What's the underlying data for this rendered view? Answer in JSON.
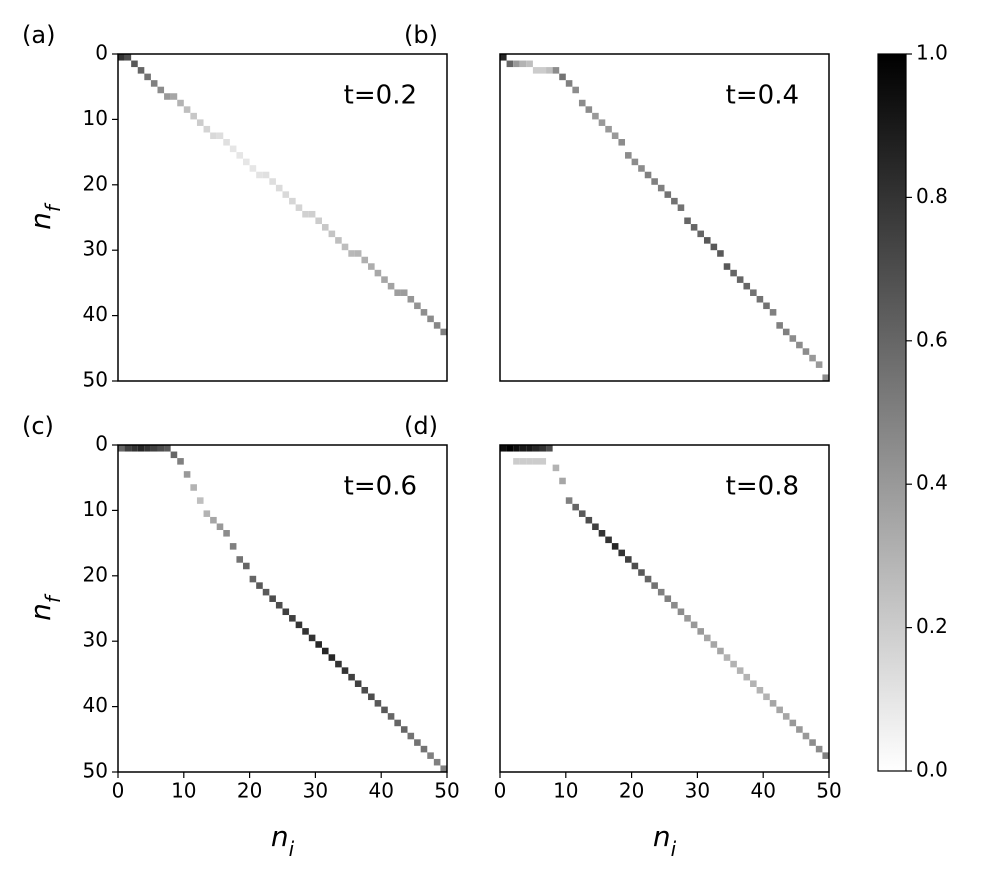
{
  "chart_data": [
    {
      "type": "heatmap",
      "label": "(a)",
      "annotation": "t=0.2",
      "xlim": [
        0,
        50
      ],
      "ylim": [
        0,
        50
      ],
      "invert_y": true,
      "yticks": [
        0,
        10,
        20,
        30,
        40,
        50
      ],
      "ylabel": "nf",
      "cells": [
        [
          0,
          0,
          0.8
        ],
        [
          1,
          0,
          0.7
        ],
        [
          2,
          1,
          0.65
        ],
        [
          3,
          2,
          0.6
        ],
        [
          4,
          3,
          0.55
        ],
        [
          5,
          4,
          0.5
        ],
        [
          6,
          5,
          0.45
        ],
        [
          7,
          6,
          0.4
        ],
        [
          8,
          6,
          0.35
        ],
        [
          9,
          7,
          0.3
        ],
        [
          10,
          8,
          0.25
        ],
        [
          11,
          9,
          0.22
        ],
        [
          12,
          10,
          0.2
        ],
        [
          13,
          11,
          0.17
        ],
        [
          14,
          12,
          0.15
        ],
        [
          15,
          12,
          0.13
        ],
        [
          16,
          13,
          0.12
        ],
        [
          17,
          14,
          0.1
        ],
        [
          18,
          15,
          0.1
        ],
        [
          19,
          16,
          0.1
        ],
        [
          20,
          17,
          0.1
        ],
        [
          21,
          18,
          0.11
        ],
        [
          22,
          18,
          0.12
        ],
        [
          23,
          19,
          0.13
        ],
        [
          24,
          20,
          0.14
        ],
        [
          25,
          21,
          0.15
        ],
        [
          26,
          22,
          0.16
        ],
        [
          27,
          23,
          0.17
        ],
        [
          28,
          24,
          0.18
        ],
        [
          29,
          24,
          0.19
        ],
        [
          30,
          25,
          0.2
        ],
        [
          31,
          26,
          0.22
        ],
        [
          32,
          27,
          0.23
        ],
        [
          33,
          28,
          0.25
        ],
        [
          34,
          29,
          0.26
        ],
        [
          35,
          30,
          0.28
        ],
        [
          36,
          30,
          0.29
        ],
        [
          37,
          31,
          0.31
        ],
        [
          38,
          32,
          0.32
        ],
        [
          39,
          33,
          0.34
        ],
        [
          40,
          34,
          0.35
        ],
        [
          41,
          35,
          0.36
        ],
        [
          42,
          36,
          0.38
        ],
        [
          43,
          36,
          0.39
        ],
        [
          44,
          37,
          0.41
        ],
        [
          45,
          38,
          0.42
        ],
        [
          46,
          39,
          0.44
        ],
        [
          47,
          40,
          0.45
        ],
        [
          48,
          41,
          0.47
        ],
        [
          49,
          42,
          0.5
        ]
      ]
    },
    {
      "type": "heatmap",
      "label": "(b)",
      "annotation": "t=0.4",
      "xlim": [
        0,
        50
      ],
      "ylim": [
        0,
        50
      ],
      "invert_y": true,
      "cells": [
        [
          0,
          0,
          0.85
        ],
        [
          1,
          1,
          0.6
        ],
        [
          2,
          1,
          0.4
        ],
        [
          3,
          1,
          0.3
        ],
        [
          4,
          1,
          0.25
        ],
        [
          5,
          2,
          0.2
        ],
        [
          6,
          2,
          0.2
        ],
        [
          7,
          2,
          0.25
        ],
        [
          8,
          2,
          0.45
        ],
        [
          9,
          3,
          0.55
        ],
        [
          10,
          4,
          0.5
        ],
        [
          11,
          5,
          0.45
        ],
        [
          12,
          7,
          0.45
        ],
        [
          13,
          8,
          0.45
        ],
        [
          14,
          9,
          0.4
        ],
        [
          15,
          10,
          0.4
        ],
        [
          16,
          11,
          0.4
        ],
        [
          17,
          12,
          0.4
        ],
        [
          18,
          13,
          0.45
        ],
        [
          19,
          15,
          0.45
        ],
        [
          20,
          16,
          0.45
        ],
        [
          21,
          17,
          0.45
        ],
        [
          22,
          18,
          0.5
        ],
        [
          23,
          19,
          0.5
        ],
        [
          24,
          20,
          0.5
        ],
        [
          25,
          21,
          0.55
        ],
        [
          26,
          22,
          0.55
        ],
        [
          27,
          23,
          0.55
        ],
        [
          28,
          25,
          0.6
        ],
        [
          29,
          26,
          0.6
        ],
        [
          30,
          27,
          0.6
        ],
        [
          31,
          28,
          0.65
        ],
        [
          32,
          29,
          0.65
        ],
        [
          33,
          30,
          0.65
        ],
        [
          34,
          32,
          0.65
        ],
        [
          35,
          33,
          0.6
        ],
        [
          36,
          34,
          0.6
        ],
        [
          37,
          35,
          0.6
        ],
        [
          38,
          36,
          0.55
        ],
        [
          39,
          37,
          0.55
        ],
        [
          40,
          38,
          0.55
        ],
        [
          41,
          39,
          0.5
        ],
        [
          42,
          41,
          0.5
        ],
        [
          43,
          42,
          0.5
        ],
        [
          44,
          43,
          0.45
        ],
        [
          45,
          44,
          0.45
        ],
        [
          46,
          45,
          0.45
        ],
        [
          47,
          46,
          0.4
        ],
        [
          48,
          47,
          0.4
        ],
        [
          49,
          49,
          0.45
        ]
      ]
    },
    {
      "type": "heatmap",
      "label": "(c)",
      "annotation": "t=0.6",
      "xlim": [
        0,
        50
      ],
      "ylim": [
        0,
        50
      ],
      "invert_y": true,
      "xticks": [
        0,
        10,
        20,
        30,
        40,
        50
      ],
      "yticks": [
        0,
        10,
        20,
        30,
        40,
        50
      ],
      "xlabel": "ni",
      "ylabel": "nf",
      "cells": [
        [
          0,
          0,
          0.6
        ],
        [
          1,
          0,
          0.75
        ],
        [
          2,
          0,
          0.8
        ],
        [
          3,
          0,
          0.85
        ],
        [
          4,
          0,
          0.8
        ],
        [
          5,
          0,
          0.75
        ],
        [
          6,
          0,
          0.7
        ],
        [
          7,
          0,
          0.65
        ],
        [
          8,
          1,
          0.6
        ],
        [
          9,
          2,
          0.5
        ],
        [
          10,
          4,
          0.4
        ],
        [
          11,
          6,
          0.3
        ],
        [
          12,
          8,
          0.25
        ],
        [
          13,
          10,
          0.3
        ],
        [
          14,
          11,
          0.35
        ],
        [
          15,
          12,
          0.4
        ],
        [
          16,
          13,
          0.45
        ],
        [
          17,
          15,
          0.5
        ],
        [
          18,
          17,
          0.55
        ],
        [
          19,
          18,
          0.6
        ],
        [
          20,
          20,
          0.6
        ],
        [
          21,
          21,
          0.65
        ],
        [
          22,
          22,
          0.65
        ],
        [
          23,
          23,
          0.7
        ],
        [
          24,
          24,
          0.7
        ],
        [
          25,
          25,
          0.75
        ],
        [
          26,
          26,
          0.75
        ],
        [
          27,
          27,
          0.8
        ],
        [
          28,
          28,
          0.8
        ],
        [
          29,
          29,
          0.8
        ],
        [
          30,
          30,
          0.85
        ],
        [
          31,
          31,
          0.85
        ],
        [
          32,
          32,
          0.85
        ],
        [
          33,
          33,
          0.8
        ],
        [
          34,
          34,
          0.8
        ],
        [
          35,
          35,
          0.75
        ],
        [
          36,
          36,
          0.75
        ],
        [
          37,
          37,
          0.7
        ],
        [
          38,
          38,
          0.7
        ],
        [
          39,
          39,
          0.65
        ],
        [
          40,
          40,
          0.65
        ],
        [
          41,
          41,
          0.6
        ],
        [
          42,
          42,
          0.6
        ],
        [
          43,
          43,
          0.6
        ],
        [
          44,
          44,
          0.55
        ],
        [
          45,
          45,
          0.55
        ],
        [
          46,
          46,
          0.55
        ],
        [
          47,
          47,
          0.5
        ],
        [
          48,
          48,
          0.5
        ],
        [
          49,
          49,
          0.5
        ]
      ]
    },
    {
      "type": "heatmap",
      "label": "(d)",
      "annotation": "t=0.8",
      "xlim": [
        0,
        50
      ],
      "ylim": [
        0,
        50
      ],
      "invert_y": true,
      "xticks": [
        0,
        10,
        20,
        30,
        40,
        50
      ],
      "xlabel": "ni",
      "cells": [
        [
          0,
          0,
          0.95
        ],
        [
          1,
          0,
          1.0
        ],
        [
          2,
          0,
          0.95
        ],
        [
          3,
          0,
          0.9
        ],
        [
          4,
          0,
          0.9
        ],
        [
          5,
          0,
          0.85
        ],
        [
          6,
          0,
          0.8
        ],
        [
          7,
          0,
          0.7
        ],
        [
          2,
          2,
          0.2
        ],
        [
          3,
          2,
          0.2
        ],
        [
          4,
          2,
          0.2
        ],
        [
          5,
          2,
          0.2
        ],
        [
          6,
          2,
          0.2
        ],
        [
          8,
          3,
          0.3
        ],
        [
          9,
          5,
          0.35
        ],
        [
          10,
          8,
          0.5
        ],
        [
          11,
          9,
          0.6
        ],
        [
          12,
          10,
          0.65
        ],
        [
          13,
          11,
          0.7
        ],
        [
          14,
          12,
          0.75
        ],
        [
          15,
          13,
          0.8
        ],
        [
          16,
          14,
          0.8
        ],
        [
          17,
          15,
          0.85
        ],
        [
          18,
          16,
          0.8
        ],
        [
          19,
          17,
          0.75
        ],
        [
          20,
          18,
          0.7
        ],
        [
          21,
          19,
          0.65
        ],
        [
          22,
          20,
          0.6
        ],
        [
          23,
          21,
          0.55
        ],
        [
          24,
          22,
          0.5
        ],
        [
          25,
          23,
          0.5
        ],
        [
          26,
          24,
          0.45
        ],
        [
          27,
          25,
          0.45
        ],
        [
          28,
          26,
          0.4
        ],
        [
          29,
          27,
          0.4
        ],
        [
          30,
          28,
          0.4
        ],
        [
          31,
          29,
          0.35
        ],
        [
          32,
          30,
          0.35
        ],
        [
          33,
          31,
          0.35
        ],
        [
          34,
          32,
          0.3
        ],
        [
          35,
          33,
          0.3
        ],
        [
          36,
          34,
          0.3
        ],
        [
          37,
          35,
          0.3
        ],
        [
          38,
          36,
          0.3
        ],
        [
          39,
          37,
          0.3
        ],
        [
          40,
          38,
          0.3
        ],
        [
          41,
          39,
          0.35
        ],
        [
          42,
          40,
          0.35
        ],
        [
          43,
          41,
          0.35
        ],
        [
          44,
          42,
          0.4
        ],
        [
          45,
          43,
          0.4
        ],
        [
          46,
          44,
          0.4
        ],
        [
          47,
          45,
          0.45
        ],
        [
          48,
          46,
          0.45
        ],
        [
          49,
          47,
          0.5
        ]
      ]
    }
  ],
  "colorbar": {
    "clim": [
      0,
      1
    ],
    "ticks": [
      {
        "value": 0,
        "label": "0.0"
      },
      0.2,
      0.4,
      0.6,
      0.8,
      {
        "value": 1,
        "label": "1.0"
      }
    ],
    "colormap": "Greys"
  }
}
